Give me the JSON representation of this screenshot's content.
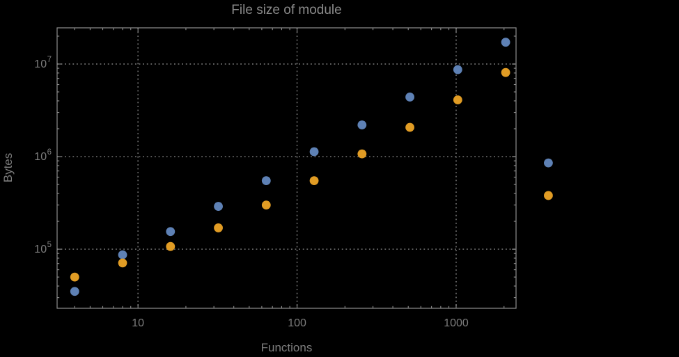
{
  "page": {
    "background": "#000000"
  },
  "colors": {
    "background": "#000000",
    "frame": "#8f8f8f",
    "gridline": "#6e6e6e",
    "tick_label": "#7d7d7d",
    "title": "#8a8a8a",
    "axis_label": "#7d7d7d"
  },
  "chart_data": {
    "type": "scatter",
    "title": "File size of module",
    "xlabel": "Functions",
    "ylabel": "Bytes",
    "x_scale": "log",
    "y_scale": "log",
    "xlim": [
      3.1,
      2380
    ],
    "ylim": [
      23000,
      24600000
    ],
    "legend": "none",
    "grid": {
      "style": "dotted",
      "x_values": [
        10,
        100,
        1000
      ],
      "y_values": [
        100000,
        1000000,
        10000000
      ]
    },
    "x_ticks": {
      "major": [
        {
          "value": 10,
          "label": "10"
        },
        {
          "value": 100,
          "label": "100"
        },
        {
          "value": 1000,
          "label": "1000"
        }
      ],
      "minor": [
        4,
        5,
        6,
        7,
        8,
        9,
        20,
        30,
        40,
        50,
        60,
        70,
        80,
        90,
        200,
        300,
        400,
        500,
        600,
        700,
        800,
        900,
        2000
      ]
    },
    "y_ticks": {
      "major": [
        {
          "value": 100000,
          "base": "10",
          "exponent": "5"
        },
        {
          "value": 1000000,
          "base": "10",
          "exponent": "6"
        },
        {
          "value": 10000000,
          "base": "10",
          "exponent": "7"
        }
      ],
      "minor": [
        30000,
        40000,
        50000,
        60000,
        70000,
        80000,
        90000,
        200000,
        300000,
        400000,
        500000,
        600000,
        700000,
        800000,
        900000,
        2000000,
        3000000,
        4000000,
        5000000,
        6000000,
        7000000,
        8000000,
        9000000,
        20000000
      ]
    },
    "x": [
      4,
      8,
      16,
      32,
      64,
      128,
      256,
      512,
      1024,
      2048,
      3800
    ],
    "series": [
      {
        "color": "#5E81B5",
        "values": [
          35000,
          87000,
          155000,
          290000,
          550000,
          1130000,
          2200000,
          4400000,
          8700000,
          17200000,
          855000
        ]
      },
      {
        "color": "#E19C24",
        "values": [
          50000,
          71000,
          107000,
          170000,
          300000,
          550000,
          1070000,
          2070000,
          4100000,
          8100000,
          380000
        ]
      }
    ],
    "marker_radius": 6.4,
    "plot_range_clipping": false
  }
}
